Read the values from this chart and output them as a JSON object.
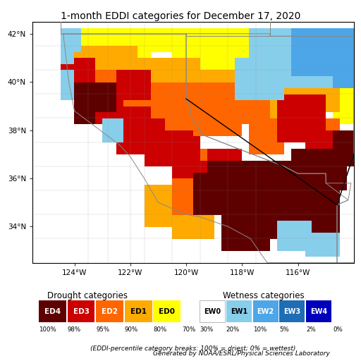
{
  "title": "1-month EDDI categories for December 17, 2020",
  "title_fontsize": 10,
  "xlim": [
    -125.5,
    -114.0
  ],
  "ylim": [
    32.5,
    42.5
  ],
  "xticks": [
    -124,
    -122,
    -120,
    -118,
    -116
  ],
  "yticks": [
    34,
    36,
    38,
    40,
    42
  ],
  "xtick_labels": [
    "124°W",
    "122°W",
    "120°W",
    "118°W",
    "116°W"
  ],
  "ytick_labels": [
    "34°N",
    "36°N",
    "38°N",
    "40°N",
    "42°N"
  ],
  "drought_labels": [
    "ED4",
    "ED3",
    "ED2",
    "ED1",
    "ED0"
  ],
  "drought_colors": [
    "#5e0000",
    "#cc0000",
    "#ff6600",
    "#ffaa00",
    "#ffff00"
  ],
  "wetness_labels": [
    "EW0",
    "EW1",
    "EW2",
    "EW3",
    "EW4"
  ],
  "wetness_colors": [
    "#ffffff",
    "#87ceeb",
    "#4da6e8",
    "#1e6db5",
    "#0000bb"
  ],
  "drought_pcts": [
    "100%",
    "98%",
    "95%",
    "90%",
    "80%",
    "70%"
  ],
  "wetness_pcts": [
    "30%",
    "20%",
    "10%",
    "5%",
    "2%",
    "0%"
  ],
  "footnote1": "(EDDI-percentile category breaks: 100% = driest; 0% = wettest)",
  "footnote2": "Generated by NOAA/ESRL/Physical Sciences Laboratory",
  "fig_bg": "#ffffff",
  "map_bg": "#ffffff",
  "state_line_color": "#888888",
  "county_line_color": "#aaaaaa",
  "border_line_color": "#000000"
}
